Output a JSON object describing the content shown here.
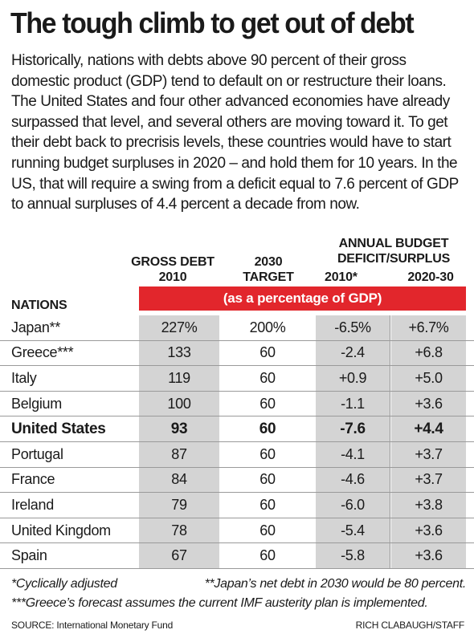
{
  "title": "The tough climb to get out of debt",
  "intro": "Historically, nations with debts above 90 percent of their gross domestic product (GDP) tend to default on or restructure their loans. The United States and four other advanced economies have already surpassed that level, and several others are moving toward it. To get their debt back to precrisis levels, these countries would have to start running budget surpluses in 2020 – and hold them for 10 years. In the US, that will require a swing from a deficit equal to 7.6 percent of GDP to annual surpluses of 4.4 percent a decade from now.",
  "headers": {
    "nations": "NATIONS",
    "gross_debt": "GROSS DEBT",
    "gross_debt_year": "2010",
    "target_year": "2030",
    "target": "TARGET",
    "budget_group_line1": "ANNUAL BUDGET",
    "budget_group_line2": "DEFICIT/SURPLUS",
    "deficit_year": "2010*",
    "surplus_years": "2020-30",
    "unit_band": "(as a percentage of GDP)"
  },
  "chart_data": {
    "type": "table",
    "title": "The tough climb to get out of debt",
    "columns": [
      "NATIONS",
      "GROSS DEBT 2010",
      "2030 TARGET",
      "ANNUAL BUDGET DEFICIT/SURPLUS 2010*",
      "ANNUAL BUDGET DEFICIT/SURPLUS 2020-30"
    ],
    "unit": "(as a percentage of GDP)",
    "rows": [
      {
        "nation": "Japan**",
        "gross_debt": "227%",
        "target": "200%",
        "deficit_2010": "-6.5%",
        "surplus_2020_30": "+6.7%",
        "bold": false
      },
      {
        "nation": "Greece***",
        "gross_debt": "133",
        "target": "60",
        "deficit_2010": "-2.4",
        "surplus_2020_30": "+6.8",
        "bold": false
      },
      {
        "nation": "Italy",
        "gross_debt": "119",
        "target": "60",
        "deficit_2010": "+0.9",
        "surplus_2020_30": "+5.0",
        "bold": false
      },
      {
        "nation": "Belgium",
        "gross_debt": "100",
        "target": "60",
        "deficit_2010": "-1.1",
        "surplus_2020_30": "+3.6",
        "bold": false
      },
      {
        "nation": "United States",
        "gross_debt": "93",
        "target": "60",
        "deficit_2010": "-7.6",
        "surplus_2020_30": "+4.4",
        "bold": true
      },
      {
        "nation": "Portugal",
        "gross_debt": "87",
        "target": "60",
        "deficit_2010": "-4.1",
        "surplus_2020_30": "+3.7",
        "bold": false
      },
      {
        "nation": "France",
        "gross_debt": "84",
        "target": "60",
        "deficit_2010": "-4.6",
        "surplus_2020_30": "+3.7",
        "bold": false
      },
      {
        "nation": "Ireland",
        "gross_debt": "79",
        "target": "60",
        "deficit_2010": "-6.0",
        "surplus_2020_30": "+3.8",
        "bold": false
      },
      {
        "nation": "United Kingdom",
        "gross_debt": "78",
        "target": "60",
        "deficit_2010": "-5.4",
        "surplus_2020_30": "+3.6",
        "bold": false
      },
      {
        "nation": "Spain",
        "gross_debt": "67",
        "target": "60",
        "deficit_2010": "-5.8",
        "surplus_2020_30": "+3.6",
        "bold": false
      }
    ],
    "colors": {
      "band": "#e2262c",
      "shaded": "#d4d4d4"
    }
  },
  "footnotes": {
    "cyclical": "*Cyclically adjusted",
    "japan": "**Japan’s net debt in 2030 would be 80 percent.",
    "greece": "***Greece’s forecast assumes the current IMF austerity plan is implemented."
  },
  "source": "SOURCE: International Monetary Fund",
  "credit": "RICH CLABAUGH/STAFF"
}
